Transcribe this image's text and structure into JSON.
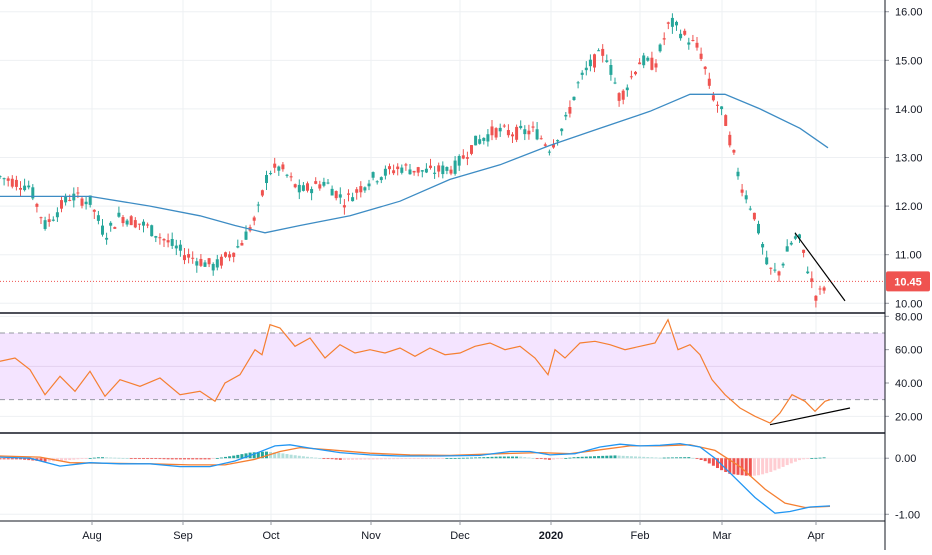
{
  "chart_data": [
    {
      "panel": "price",
      "type": "candlestick",
      "ylim": [
        9.8,
        16.2
      ],
      "y_ticks": [
        "16.00",
        "15.00",
        "14.00",
        "13.00",
        "12.00",
        "11.00",
        "10.00"
      ],
      "y_tick_values": [
        16,
        15,
        14,
        13,
        12,
        11,
        10
      ],
      "x_ticks": [
        "Aug",
        "Sep",
        "Oct",
        "Nov",
        "Dec",
        "2020",
        "Feb",
        "Mar",
        "Apr"
      ],
      "last_price": 10.45,
      "last_price_label": "10.45",
      "colors": {
        "up": "#26a69a",
        "down": "#ef5350",
        "ma": "#3d8cc4",
        "last": "#ef5350",
        "trend": "#000000"
      },
      "moving_average": [
        [
          0,
          12.2
        ],
        [
          30,
          12.2
        ],
        [
          90,
          12.2
        ],
        [
          150,
          12.0
        ],
        [
          200,
          11.8
        ],
        [
          235,
          11.6
        ],
        [
          265,
          11.45
        ],
        [
          300,
          11.6
        ],
        [
          350,
          11.8
        ],
        [
          400,
          12.1
        ],
        [
          450,
          12.55
        ],
        [
          500,
          12.85
        ],
        [
          550,
          13.25
        ],
        [
          600,
          13.6
        ],
        [
          650,
          13.95
        ],
        [
          690,
          14.3
        ],
        [
          725,
          14.3
        ],
        [
          760,
          14.0
        ],
        [
          800,
          13.6
        ],
        [
          828,
          13.2
        ]
      ],
      "trendline": [
        [
          795,
          11.45
        ],
        [
          845,
          10.05
        ]
      ],
      "price_path": [
        [
          0,
          12.6
        ],
        [
          30,
          12.4
        ],
        [
          45,
          11.6
        ],
        [
          70,
          12.2
        ],
        [
          90,
          12.1
        ],
        [
          105,
          11.4
        ],
        [
          120,
          11.8
        ],
        [
          145,
          11.6
        ],
        [
          165,
          11.3
        ],
        [
          185,
          11.0
        ],
        [
          215,
          10.75
        ],
        [
          240,
          11.2
        ],
        [
          257,
          11.8
        ],
        [
          268,
          12.7
        ],
        [
          280,
          12.8
        ],
        [
          300,
          12.3
        ],
        [
          325,
          12.5
        ],
        [
          345,
          12.1
        ],
        [
          370,
          12.55
        ],
        [
          400,
          12.8
        ],
        [
          430,
          12.7
        ],
        [
          455,
          12.8
        ],
        [
          475,
          13.3
        ],
        [
          495,
          13.55
        ],
        [
          515,
          13.5
        ],
        [
          535,
          13.55
        ],
        [
          550,
          13.2
        ],
        [
          565,
          13.7
        ],
        [
          578,
          14.5
        ],
        [
          590,
          14.9
        ],
        [
          605,
          15.2
        ],
        [
          620,
          14.2
        ],
        [
          640,
          15.0
        ],
        [
          655,
          14.9
        ],
        [
          670,
          15.8
        ],
        [
          685,
          15.5
        ],
        [
          700,
          15.2
        ],
        [
          712,
          14.3
        ],
        [
          725,
          13.8
        ],
        [
          740,
          12.5
        ],
        [
          755,
          11.8
        ],
        [
          768,
          10.7
        ],
        [
          778,
          10.6
        ],
        [
          790,
          11.2
        ],
        [
          798,
          11.4
        ],
        [
          808,
          10.7
        ],
        [
          817,
          10.1
        ],
        [
          826,
          10.4
        ]
      ]
    },
    {
      "panel": "rsi",
      "type": "line",
      "ylim": [
        10,
        82
      ],
      "y_ticks": [
        "80.00",
        "60.00",
        "40.00",
        "20.00"
      ],
      "y_tick_values": [
        80,
        60,
        40,
        20
      ],
      "band": [
        30,
        70
      ],
      "colors": {
        "line": "#f57f31",
        "band": "#f4e4ff",
        "trend": "#000000"
      },
      "trendline": [
        [
          770,
          15
        ],
        [
          850,
          25
        ]
      ],
      "values": [
        [
          0,
          53
        ],
        [
          15,
          55
        ],
        [
          30,
          48
        ],
        [
          45,
          33
        ],
        [
          60,
          44
        ],
        [
          75,
          35
        ],
        [
          90,
          47
        ],
        [
          105,
          32
        ],
        [
          120,
          42
        ],
        [
          140,
          38
        ],
        [
          160,
          43
        ],
        [
          180,
          33
        ],
        [
          200,
          35
        ],
        [
          215,
          29
        ],
        [
          225,
          40
        ],
        [
          240,
          45
        ],
        [
          255,
          60
        ],
        [
          262,
          57
        ],
        [
          270,
          75
        ],
        [
          280,
          73
        ],
        [
          295,
          62
        ],
        [
          310,
          67
        ],
        [
          325,
          55
        ],
        [
          340,
          63
        ],
        [
          355,
          58
        ],
        [
          370,
          60
        ],
        [
          385,
          58
        ],
        [
          400,
          61
        ],
        [
          415,
          56
        ],
        [
          430,
          61
        ],
        [
          445,
          57
        ],
        [
          460,
          58
        ],
        [
          475,
          62
        ],
        [
          490,
          64
        ],
        [
          505,
          60
        ],
        [
          520,
          62
        ],
        [
          535,
          55
        ],
        [
          548,
          45
        ],
        [
          555,
          60
        ],
        [
          565,
          55
        ],
        [
          580,
          64
        ],
        [
          595,
          65
        ],
        [
          610,
          63
        ],
        [
          625,
          60
        ],
        [
          640,
          62
        ],
        [
          655,
          64
        ],
        [
          668,
          78
        ],
        [
          678,
          60
        ],
        [
          690,
          63
        ],
        [
          700,
          57
        ],
        [
          712,
          42
        ],
        [
          725,
          33
        ],
        [
          740,
          25
        ],
        [
          755,
          20
        ],
        [
          770,
          16
        ],
        [
          780,
          22
        ],
        [
          792,
          33
        ],
        [
          805,
          29
        ],
        [
          815,
          23
        ],
        [
          825,
          29
        ],
        [
          830,
          30
        ]
      ]
    },
    {
      "panel": "macd",
      "type": "line",
      "ylim": [
        -1.12,
        0.45
      ],
      "y_ticks": [
        "0.00",
        "-1.00"
      ],
      "y_tick_values": [
        0,
        -1
      ],
      "colors": {
        "macd": "#2196f3",
        "signal": "#f57f31",
        "hist_up": "#26a69a",
        "hist_up_light": "#b2dfdb",
        "hist_down": "#ef5350",
        "hist_down_light": "#ffcdd2"
      },
      "macd": [
        [
          0,
          0.02
        ],
        [
          30,
          0.0
        ],
        [
          60,
          -0.14
        ],
        [
          90,
          -0.08
        ],
        [
          120,
          -0.1
        ],
        [
          150,
          -0.1
        ],
        [
          180,
          -0.15
        ],
        [
          210,
          -0.15
        ],
        [
          235,
          -0.05
        ],
        [
          255,
          0.08
        ],
        [
          275,
          0.22
        ],
        [
          290,
          0.24
        ],
        [
          310,
          0.18
        ],
        [
          340,
          0.1
        ],
        [
          370,
          0.06
        ],
        [
          400,
          0.04
        ],
        [
          440,
          0.04
        ],
        [
          480,
          0.05
        ],
        [
          510,
          0.12
        ],
        [
          530,
          0.12
        ],
        [
          550,
          0.06
        ],
        [
          575,
          0.08
        ],
        [
          600,
          0.2
        ],
        [
          620,
          0.25
        ],
        [
          640,
          0.22
        ],
        [
          660,
          0.23
        ],
        [
          680,
          0.26
        ],
        [
          700,
          0.2
        ],
        [
          715,
          0.0
        ],
        [
          735,
          -0.35
        ],
        [
          755,
          -0.7
        ],
        [
          775,
          -0.98
        ],
        [
          790,
          -0.95
        ],
        [
          810,
          -0.87
        ],
        [
          830,
          -0.85
        ]
      ],
      "signal": [
        [
          0,
          0.04
        ],
        [
          40,
          0.02
        ],
        [
          70,
          -0.08
        ],
        [
          110,
          -0.09
        ],
        [
          150,
          -0.1
        ],
        [
          190,
          -0.12
        ],
        [
          225,
          -0.12
        ],
        [
          255,
          -0.02
        ],
        [
          280,
          0.12
        ],
        [
          300,
          0.19
        ],
        [
          330,
          0.15
        ],
        [
          370,
          0.09
        ],
        [
          410,
          0.06
        ],
        [
          450,
          0.05
        ],
        [
          500,
          0.08
        ],
        [
          540,
          0.1
        ],
        [
          570,
          0.08
        ],
        [
          600,
          0.15
        ],
        [
          630,
          0.22
        ],
        [
          660,
          0.22
        ],
        [
          690,
          0.24
        ],
        [
          715,
          0.14
        ],
        [
          740,
          -0.15
        ],
        [
          765,
          -0.55
        ],
        [
          785,
          -0.8
        ],
        [
          805,
          -0.88
        ],
        [
          830,
          -0.86
        ]
      ],
      "histogram": [
        [
          20,
          -0.02
        ],
        [
          45,
          -0.06
        ],
        [
          60,
          -0.05
        ],
        [
          100,
          0.02
        ],
        [
          130,
          0.0
        ],
        [
          170,
          -0.02
        ],
        [
          210,
          -0.02
        ],
        [
          235,
          0.05
        ],
        [
          250,
          0.1
        ],
        [
          265,
          0.12
        ],
        [
          278,
          0.1
        ],
        [
          292,
          0.06
        ],
        [
          310,
          0.02
        ],
        [
          340,
          -0.03
        ],
        [
          380,
          -0.02
        ],
        [
          420,
          -0.01
        ],
        [
          470,
          0.01
        ],
        [
          500,
          0.03
        ],
        [
          520,
          0.03
        ],
        [
          550,
          -0.03
        ],
        [
          575,
          0.02
        ],
        [
          600,
          0.04
        ],
        [
          615,
          0.05
        ],
        [
          660,
          0.01
        ],
        [
          690,
          0.02
        ],
        [
          705,
          -0.05
        ],
        [
          712,
          -0.12
        ],
        [
          720,
          -0.2
        ],
        [
          730,
          -0.28
        ],
        [
          740,
          -0.3
        ],
        [
          750,
          -0.32
        ],
        [
          760,
          -0.3
        ],
        [
          770,
          -0.25
        ],
        [
          780,
          -0.18
        ],
        [
          790,
          -0.1
        ],
        [
          800,
          -0.03
        ],
        [
          810,
          0.0
        ],
        [
          820,
          0.01
        ],
        [
          828,
          0.02
        ]
      ]
    }
  ]
}
